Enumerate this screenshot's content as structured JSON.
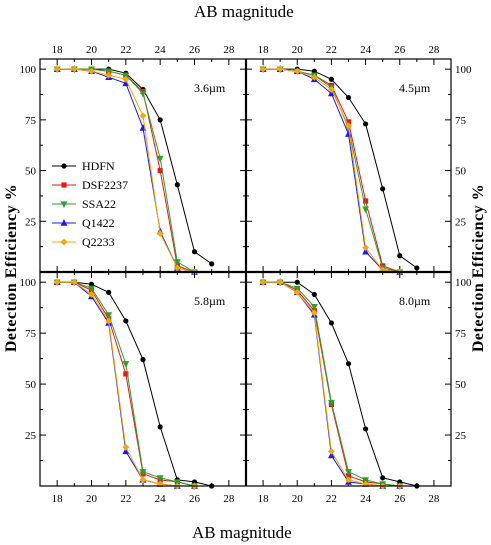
{
  "figure": {
    "top_xlabel": "AB magnitude",
    "bottom_xlabel": "AB magnitude",
    "ylabel_left": "Detection Efficiency %",
    "ylabel_right": "Detection Efficiency %"
  },
  "colors": {
    "HDFN": "#000000",
    "DSF2237": "#e8191c",
    "SSA22": "#2ca02c",
    "Q1422": "#1a1aef",
    "Q2233": "#f5a800"
  },
  "legend": {
    "entries": [
      {
        "name": "HDFN",
        "marker": "circle"
      },
      {
        "name": "DSF2237",
        "marker": "square"
      },
      {
        "name": "SSA22",
        "marker": "triangle-down"
      },
      {
        "name": "Q1422",
        "marker": "triangle-up"
      },
      {
        "name": "Q2233",
        "marker": "diamond"
      }
    ]
  },
  "chart_data": [
    {
      "type": "line",
      "panel_label": "3.6µm",
      "xlim": [
        17,
        29
      ],
      "ylim": [
        0,
        105
      ],
      "xticks": [
        "18",
        "20",
        "22",
        "24",
        "26",
        "28"
      ],
      "yticks": [
        "25",
        "50",
        "75",
        "100"
      ],
      "series": [
        {
          "name": "HDFN",
          "x": [
            18,
            19,
            20,
            21,
            22,
            23,
            24,
            25,
            26,
            27
          ],
          "y": [
            100,
            100,
            100,
            100,
            98,
            90,
            75,
            43,
            10,
            4
          ]
        },
        {
          "name": "DSF2237",
          "x": [
            18,
            19,
            20,
            21,
            22,
            23,
            24,
            25,
            26
          ],
          "y": [
            100,
            100,
            100,
            99,
            97,
            89,
            50,
            3,
            0
          ]
        },
        {
          "name": "SSA22",
          "x": [
            18,
            19,
            20,
            21,
            22,
            23,
            24,
            25,
            26
          ],
          "y": [
            100,
            100,
            100,
            99,
            97,
            88,
            56,
            5,
            0
          ]
        },
        {
          "name": "Q1422",
          "x": [
            18,
            19,
            20,
            21,
            22,
            23,
            24,
            25,
            26
          ],
          "y": [
            100,
            100,
            99,
            96,
            93,
            71,
            20,
            2,
            0
          ]
        },
        {
          "name": "Q2233",
          "x": [
            18,
            19,
            20,
            21,
            22,
            23,
            24,
            25,
            26
          ],
          "y": [
            100,
            100,
            99,
            97,
            95,
            77,
            19,
            2,
            0
          ]
        }
      ]
    },
    {
      "type": "line",
      "panel_label": "4.5µm",
      "xlim": [
        17,
        29
      ],
      "ylim": [
        0,
        105
      ],
      "xticks": [
        "18",
        "20",
        "22",
        "24",
        "26",
        "28"
      ],
      "yticks": [
        "25",
        "50",
        "75",
        "100"
      ],
      "series": [
        {
          "name": "HDFN",
          "x": [
            18,
            19,
            20,
            21,
            22,
            23,
            24,
            25,
            26,
            27
          ],
          "y": [
            100,
            100,
            100,
            99,
            95,
            86,
            73,
            41,
            8,
            2
          ]
        },
        {
          "name": "DSF2237",
          "x": [
            18,
            19,
            20,
            21,
            22,
            23,
            24,
            25,
            26
          ],
          "y": [
            100,
            100,
            99,
            97,
            92,
            74,
            35,
            3,
            0
          ]
        },
        {
          "name": "SSA22",
          "x": [
            18,
            19,
            20,
            21,
            22,
            23,
            24,
            25,
            26
          ],
          "y": [
            100,
            100,
            99,
            97,
            91,
            71,
            31,
            2,
            0
          ]
        },
        {
          "name": "Q1422",
          "x": [
            18,
            19,
            20,
            21,
            22,
            23,
            24,
            25,
            26
          ],
          "y": [
            100,
            100,
            99,
            95,
            88,
            68,
            10,
            1,
            0
          ]
        },
        {
          "name": "Q2233",
          "x": [
            18,
            19,
            20,
            21,
            22,
            23,
            24,
            25,
            26
          ],
          "y": [
            100,
            100,
            99,
            96,
            90,
            72,
            12,
            1,
            0
          ]
        }
      ]
    },
    {
      "type": "line",
      "panel_label": "5.8µm",
      "xlim": [
        17,
        29
      ],
      "ylim": [
        0,
        105
      ],
      "xticks": [
        "18",
        "20",
        "22",
        "24",
        "26",
        "28"
      ],
      "yticks": [
        "25",
        "50",
        "75",
        "100"
      ],
      "series": [
        {
          "name": "HDFN",
          "x": [
            18,
            19,
            20,
            21,
            22,
            23,
            24,
            25,
            26,
            27
          ],
          "y": [
            100,
            100,
            99,
            95,
            81,
            62,
            29,
            3,
            2,
            0
          ]
        },
        {
          "name": "DSF2237",
          "x": [
            18,
            19,
            20,
            21,
            22,
            23,
            24,
            25,
            26
          ],
          "y": [
            100,
            100,
            96,
            82,
            55,
            6,
            3,
            2,
            0
          ]
        },
        {
          "name": "SSA22",
          "x": [
            18,
            19,
            20,
            21,
            22,
            23,
            24,
            25,
            26
          ],
          "y": [
            100,
            100,
            97,
            84,
            60,
            7,
            4,
            2,
            0
          ]
        },
        {
          "name": "Q1422",
          "x": [
            18,
            19,
            20,
            21,
            22,
            23,
            24,
            25,
            26
          ],
          "y": [
            100,
            100,
            93,
            80,
            17,
            3,
            1,
            0,
            0
          ]
        },
        {
          "name": "Q2233",
          "x": [
            18,
            19,
            20,
            21,
            22,
            23,
            24,
            25,
            26
          ],
          "y": [
            100,
            100,
            94,
            81,
            19,
            3,
            1,
            0,
            0
          ]
        }
      ]
    },
    {
      "type": "line",
      "panel_label": "8.0µm",
      "xlim": [
        17,
        29
      ],
      "ylim": [
        0,
        105
      ],
      "xticks": [
        "18",
        "20",
        "22",
        "24",
        "26",
        "28"
      ],
      "yticks": [
        "25",
        "50",
        "75",
        "100"
      ],
      "series": [
        {
          "name": "HDFN",
          "x": [
            18,
            19,
            20,
            21,
            22,
            23,
            24,
            25,
            26,
            27
          ],
          "y": [
            100,
            100,
            100,
            94,
            80,
            60,
            28,
            4,
            2,
            0
          ]
        },
        {
          "name": "DSF2237",
          "x": [
            18,
            19,
            20,
            21,
            22,
            23,
            24,
            25,
            26
          ],
          "y": [
            100,
            100,
            96,
            86,
            40,
            5,
            2,
            1,
            0
          ]
        },
        {
          "name": "SSA22",
          "x": [
            18,
            19,
            20,
            21,
            22,
            23,
            24,
            25,
            26
          ],
          "y": [
            100,
            100,
            97,
            88,
            41,
            7,
            3,
            1,
            0
          ]
        },
        {
          "name": "Q1422",
          "x": [
            18,
            19,
            20,
            21,
            22,
            23,
            24,
            25,
            26
          ],
          "y": [
            100,
            100,
            95,
            84,
            15,
            2,
            1,
            0,
            0
          ]
        },
        {
          "name": "Q2233",
          "x": [
            18,
            19,
            20,
            21,
            22,
            23,
            24,
            25,
            26
          ],
          "y": [
            100,
            100,
            95,
            85,
            17,
            3,
            1,
            0,
            0
          ]
        }
      ]
    }
  ]
}
